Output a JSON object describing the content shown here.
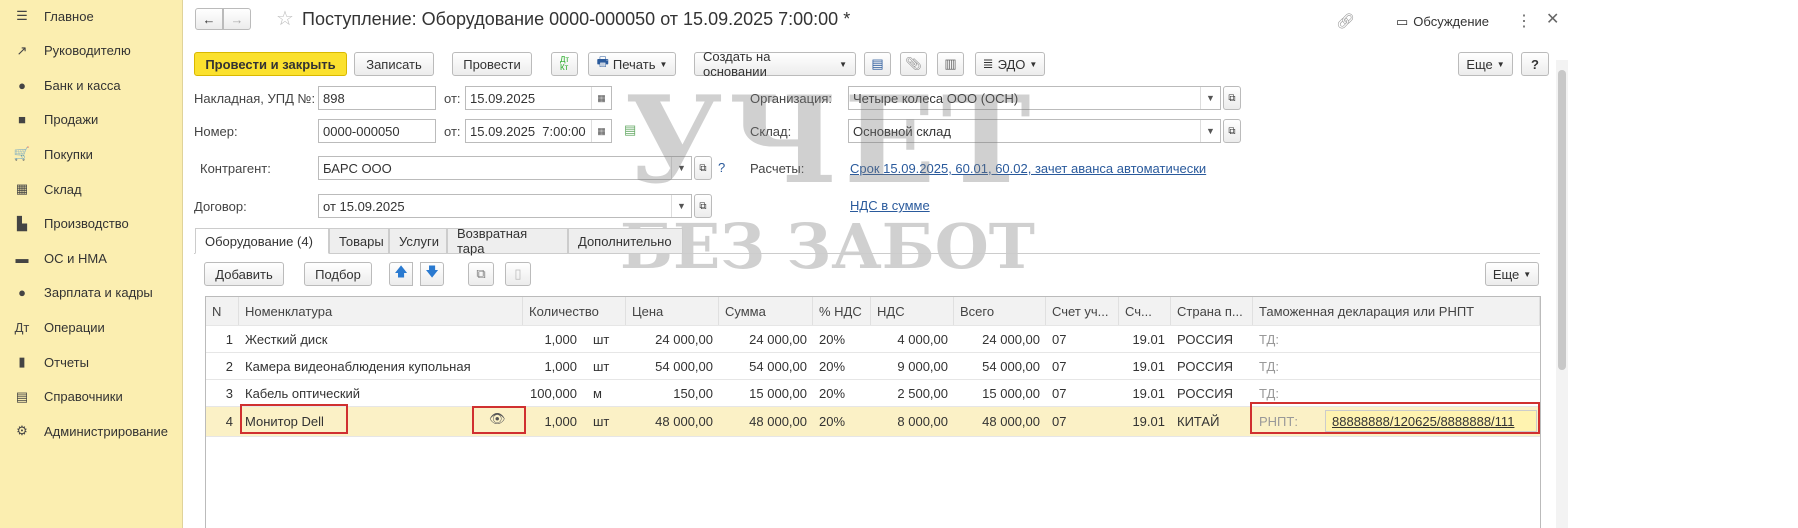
{
  "sidebar": {
    "items": [
      {
        "label": "Главное",
        "icon": "menu-icon",
        "glyph": "☰"
      },
      {
        "label": "Руководителю",
        "icon": "trend-icon",
        "glyph": "↗"
      },
      {
        "label": "Банк и касса",
        "icon": "coin-icon",
        "glyph": "●"
      },
      {
        "label": "Продажи",
        "icon": "bag-icon",
        "glyph": "■"
      },
      {
        "label": "Покупки",
        "icon": "cart-icon",
        "glyph": "🛒"
      },
      {
        "label": "Склад",
        "icon": "grid-icon",
        "glyph": "▦"
      },
      {
        "label": "Производство",
        "icon": "factory-icon",
        "glyph": "▙"
      },
      {
        "label": "ОС и НМА",
        "icon": "truck-icon",
        "glyph": "▬"
      },
      {
        "label": "Зарплата и кадры",
        "icon": "person-icon",
        "glyph": "●"
      },
      {
        "label": "Операции",
        "icon": "dt-kt-icon",
        "glyph": "Дт"
      },
      {
        "label": "Отчеты",
        "icon": "bar-chart-icon",
        "glyph": "▮"
      },
      {
        "label": "Справочники",
        "icon": "book-icon",
        "glyph": "▤"
      },
      {
        "label": "Администрирование",
        "icon": "gear-icon",
        "glyph": "⚙"
      }
    ]
  },
  "header": {
    "title": "Поступление: Оборудование 0000-000050 от 15.09.2025 7:00:00 *",
    "discussion": "Обсуждение"
  },
  "toolbar": {
    "post_close": "Провести и закрыть",
    "save": "Записать",
    "post": "Провести",
    "print": "Печать",
    "create_based": "Создать на основании",
    "edo": "ЭДО",
    "more": "Еще",
    "help": "?"
  },
  "form": {
    "invoice_label": "Накладная, УПД №:",
    "invoice_no": "898",
    "from_label": "от:",
    "invoice_date": "15.09.2025",
    "number_label": "Номер:",
    "number": "0000-000050",
    "number_date": "15.09.2025  7:00:00",
    "counterparty_label": "Контрагент:",
    "counterparty": "БАРС ООО",
    "help_q": "?",
    "contract_label": "Договор:",
    "contract": "от 15.09.2025",
    "org_label": "Организация:",
    "org": "Четыре колеса ООО (ОСН)",
    "warehouse_label": "Склад:",
    "warehouse": "Основной склад",
    "settlements_label": "Расчеты:",
    "settlements": "Срок 15.09.2025, 60.01, 60.02, зачет аванса автоматически",
    "vat_link": "НДС в сумме"
  },
  "tabs": [
    "Оборудование (4)",
    "Товары",
    "Услуги",
    "Возвратная тара",
    "Дополнительно"
  ],
  "table_toolbar": {
    "add": "Добавить",
    "select": "Подбор",
    "more": "Еще"
  },
  "table": {
    "columns": [
      "N",
      "Номенклатура",
      "Количество",
      "Цена",
      "Сумма",
      "% НДС",
      "НДС",
      "Всего",
      "Счет уч...",
      "Сч...",
      "Страна п...",
      "Таможенная декларация или РНПТ"
    ],
    "rows": [
      {
        "n": "1",
        "name": "Жесткий диск",
        "qty": "1,000",
        "unit": "шт",
        "price": "24 000,00",
        "sum": "24 000,00",
        "vat_rate": "20%",
        "vat": "4 000,00",
        "total": "24 000,00",
        "account": "07",
        "vat_account": "19.01",
        "country": "РОССИЯ",
        "decl_label": "ТД:",
        "decl": ""
      },
      {
        "n": "2",
        "name": "Камера видеонаблюдения купольная",
        "qty": "1,000",
        "unit": "шт",
        "price": "54 000,00",
        "sum": "54 000,00",
        "vat_rate": "20%",
        "vat": "9 000,00",
        "total": "54 000,00",
        "account": "07",
        "vat_account": "19.01",
        "country": "РОССИЯ",
        "decl_label": "ТД:",
        "decl": ""
      },
      {
        "n": "3",
        "name": "Кабель оптический",
        "qty": "100,000",
        "unit": "м",
        "price": "150,00",
        "sum": "15 000,00",
        "vat_rate": "20%",
        "vat": "2 500,00",
        "total": "15 000,00",
        "account": "07",
        "vat_account": "19.01",
        "country": "РОССИЯ",
        "decl_label": "ТД:",
        "decl": ""
      },
      {
        "n": "4",
        "name": "Монитор Dell",
        "qty": "1,000",
        "unit": "шт",
        "price": "48 000,00",
        "sum": "48 000,00",
        "vat_rate": "20%",
        "vat": "8 000,00",
        "total": "48 000,00",
        "account": "07",
        "vat_account": "19.01",
        "country": "КИТАЙ",
        "decl_label": "РНПТ:",
        "decl": "88888888/120625/8888888/111"
      }
    ]
  },
  "watermark": {
    "line1": "УЧЕТ",
    "line2": "БЕЗ ЗАБОТ"
  },
  "colors": {
    "sidebar": "#fbeeb0",
    "primary_button": "#fbe12e",
    "link": "#2a5a9c",
    "selected_row": "#fbf1c6",
    "highlight_box": "#d03030"
  }
}
